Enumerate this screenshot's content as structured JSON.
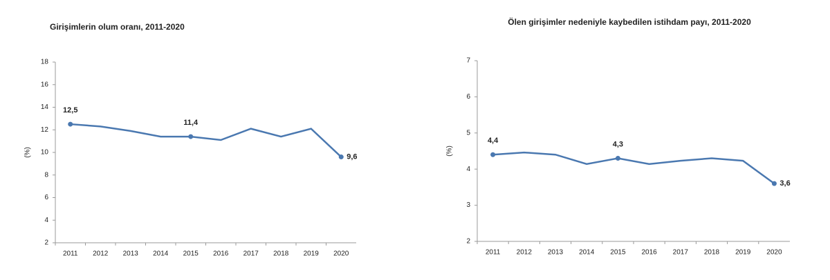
{
  "chart_data": [
    {
      "type": "line",
      "title": "Girişimlerin olum oranı, 2011-2020",
      "y_label": "(%)",
      "categories": [
        "2011",
        "2012",
        "2013",
        "2014",
        "2015",
        "2016",
        "2017",
        "2018",
        "2019",
        "2020"
      ],
      "series": [
        {
          "color": "#4a78b0",
          "values": [
            12.5,
            12.3,
            11.9,
            11.4,
            11.4,
            11.1,
            12.1,
            11.4,
            12.1,
            9.6
          ],
          "value_labels": [
            "12,5",
            null,
            null,
            null,
            "11,4",
            null,
            null,
            null,
            null,
            "9,6"
          ]
        }
      ],
      "ylim": [
        2,
        18
      ],
      "yticks": [
        2,
        4,
        6,
        8,
        10,
        12,
        14,
        16,
        18
      ],
      "grid": false
    },
    {
      "type": "line",
      "title": "Ölen girişimler nedeniyle kaybedilen istihdam payı, 2011-2020",
      "y_label": "(%)",
      "categories": [
        "2011",
        "2012",
        "2013",
        "2014",
        "2015",
        "2016",
        "2017",
        "2018",
        "2019",
        "2020"
      ],
      "series": [
        {
          "color": "#4a78b0",
          "values": [
            4.4,
            4.46,
            4.4,
            4.14,
            4.3,
            4.14,
            4.23,
            4.3,
            4.23,
            3.6
          ],
          "value_labels": [
            "4,4",
            null,
            null,
            null,
            "4,3",
            null,
            null,
            null,
            null,
            "3,6"
          ]
        }
      ],
      "ylim": [
        2,
        7
      ],
      "yticks": [
        2,
        3,
        4,
        5,
        6,
        7
      ],
      "grid": false
    }
  ]
}
